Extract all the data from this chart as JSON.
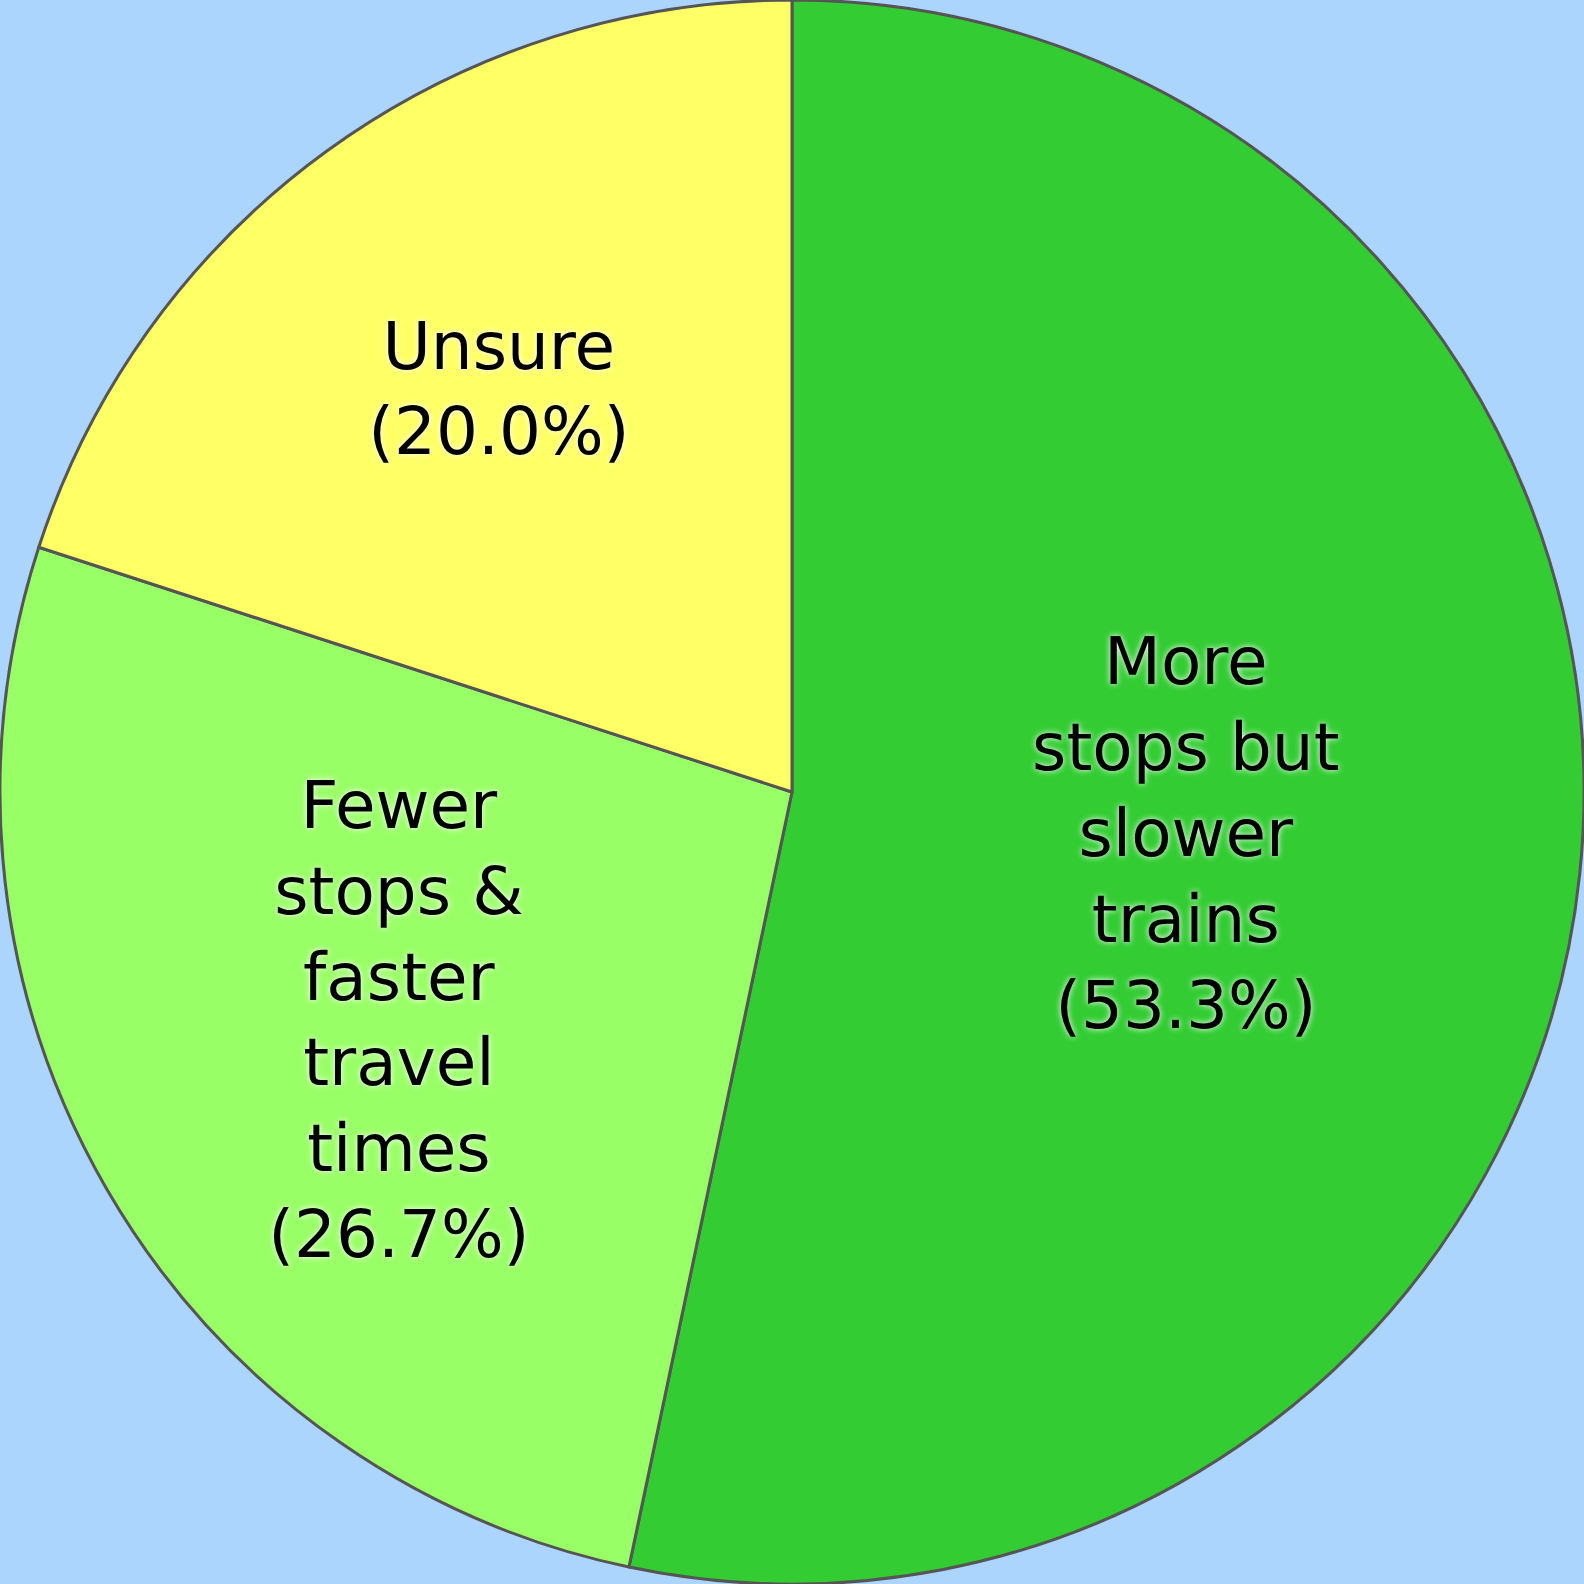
{
  "chart_data": {
    "type": "pie",
    "categories": [
      "More stops but slower trains",
      "Fewer stops & faster travel times",
      "Unsure"
    ],
    "values": [
      53.3,
      26.7,
      20.0
    ],
    "value_labels": [
      "(53.3%)",
      "(26.7%)",
      "(20.0%)"
    ],
    "colors": [
      "#33cc33",
      "#99ff66",
      "#ffff66"
    ],
    "legend": false
  }
}
